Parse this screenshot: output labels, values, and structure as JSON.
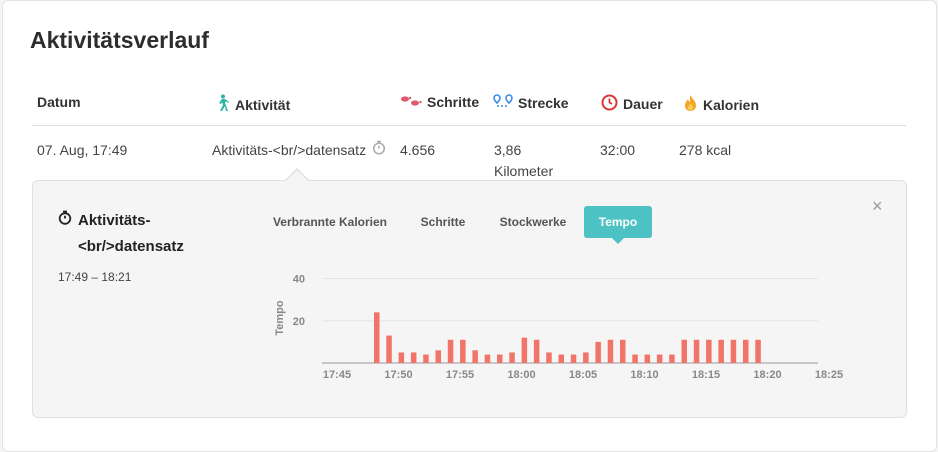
{
  "title": "Aktivitätsverlauf",
  "columns": {
    "date": "Datum",
    "activity": "Aktivität",
    "steps": "Schritte",
    "distance": "Strecke",
    "duration": "Dauer",
    "calories": "Kalorien"
  },
  "row": {
    "date": "07. Aug, 17:49",
    "activity": "Aktivitäts-<br/>datensatz",
    "steps": "4.656",
    "distance_value": "3,86",
    "distance_unit": "Kilometer",
    "duration": "32:00",
    "calories": "278 kcal"
  },
  "detail": {
    "title_line1": "Aktivitäts-",
    "title_line2": "<br/>datensatz",
    "time_range": "17:49 – 18:21",
    "tabs": [
      "Verbrannte Kalorien",
      "Schritte",
      "Stockwerke",
      "Tempo"
    ],
    "active_tab": "Tempo",
    "close_symbol": "×"
  },
  "icons": {
    "activity": "walking-person-icon",
    "steps": "footprints-icon",
    "distance": "route-icon",
    "duration": "clock-icon",
    "calories": "flame-icon",
    "record": "stopwatch-icon",
    "close": "close-icon"
  },
  "colors": {
    "accent": "#4cc2c4",
    "bar": "#f07468",
    "steps_icon": "#e05a6b",
    "distance_icon": "#3a8de0",
    "duration_icon": "#d33",
    "calories_icon": "#f5a623",
    "activity_icon": "#2bb3a8"
  },
  "chart_data": {
    "type": "bar",
    "ylabel": "Tempo",
    "yticks": [
      20,
      40
    ],
    "ylim": [
      0,
      45
    ],
    "xticks": [
      "17:45",
      "17:50",
      "17:55",
      "18:00",
      "18:05",
      "18:10",
      "18:15",
      "18:20",
      "18:25"
    ],
    "x_start_min": 0,
    "values": [
      24,
      13,
      5,
      5,
      4,
      6,
      11,
      11,
      6,
      4,
      4,
      5,
      12,
      11,
      5,
      4,
      4,
      5,
      10,
      11,
      11,
      4,
      4,
      4,
      4,
      11,
      11,
      11,
      11,
      11,
      11,
      11
    ]
  }
}
